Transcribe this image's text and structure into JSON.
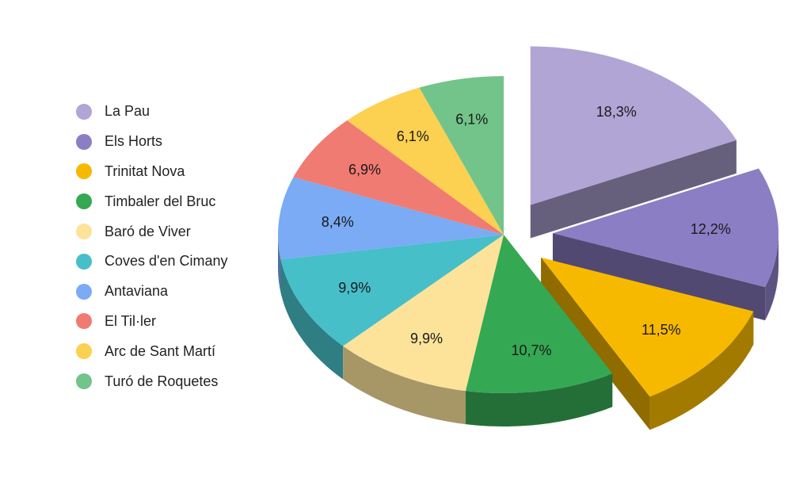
{
  "chart_data": {
    "type": "pie",
    "style": "3d-exploded",
    "legend_position": "left",
    "slices": [
      {
        "label": "La Pau",
        "value": 18.3,
        "value_label": "18,3%",
        "color": "#b1a5d6",
        "exploded": true
      },
      {
        "label": "Els Horts",
        "value": 12.2,
        "value_label": "12,2%",
        "color": "#8c7ec4",
        "exploded": true
      },
      {
        "label": "Trinitat Nova",
        "value": 11.5,
        "value_label": "11,5%",
        "color": "#f7b900",
        "exploded": true
      },
      {
        "label": "Timbaler del Bruc",
        "value": 10.7,
        "value_label": "10,7%",
        "color": "#35a853",
        "exploded": false
      },
      {
        "label": "Baró de Viver",
        "value": 9.9,
        "value_label": "9,9%",
        "color": "#fde39a",
        "exploded": false
      },
      {
        "label": "Coves d'en Cimany",
        "value": 9.9,
        "value_label": "9,9%",
        "color": "#47bfc8",
        "exploded": false
      },
      {
        "label": "Antaviana",
        "value": 8.4,
        "value_label": "8,4%",
        "color": "#7aabf4",
        "exploded": false
      },
      {
        "label": "El Til·ler",
        "value": 6.9,
        "value_label": "6,9%",
        "color": "#f07b72",
        "exploded": false
      },
      {
        "label": "Arc de Sant Martí",
        "value": 6.1,
        "value_label": "6,1%",
        "color": "#fcd050",
        "exploded": false
      },
      {
        "label": "Turó de Roquetes",
        "value": 6.1,
        "value_label": "6,1%",
        "color": "#72c48a",
        "exploded": false
      }
    ]
  }
}
